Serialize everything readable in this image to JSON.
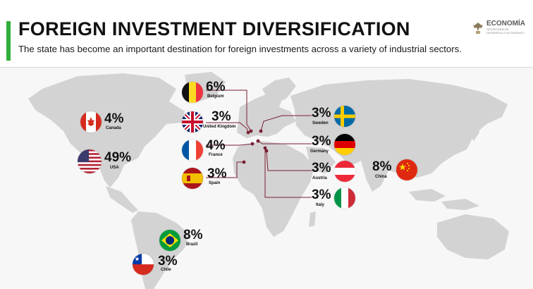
{
  "header": {
    "title": "FOREIGN INVESTMENT DIVERSIFICATION",
    "subtitle": "The state has become an important destination for foreign investments across a variety of industrial sectors.",
    "logo_word": "ECONOMÍA",
    "logo_sub": "SECRETARÍA DE DESARROLLO ECONÓMICO"
  },
  "countries": {
    "belgium": {
      "pct": "6%",
      "name": "Belgium"
    },
    "uk": {
      "pct": "3%",
      "name": "United Kingdom"
    },
    "france": {
      "pct": "4%",
      "name": "France"
    },
    "spain": {
      "pct": "3%",
      "name": "Spain"
    },
    "canada": {
      "pct": "4%",
      "name": "Canada"
    },
    "usa": {
      "pct": "49%",
      "name": "USA"
    },
    "sweden": {
      "pct": "3%",
      "name": "Sweden"
    },
    "germany": {
      "pct": "3%",
      "name": "Germany"
    },
    "austria": {
      "pct": "3%",
      "name": "Austria"
    },
    "italy": {
      "pct": "3%",
      "name": "Italy"
    },
    "china": {
      "pct": "8%",
      "name": "China"
    },
    "brazil": {
      "pct": "8%",
      "name": "Brazil"
    },
    "chile": {
      "pct": "3%",
      "name": "Chile"
    }
  }
}
